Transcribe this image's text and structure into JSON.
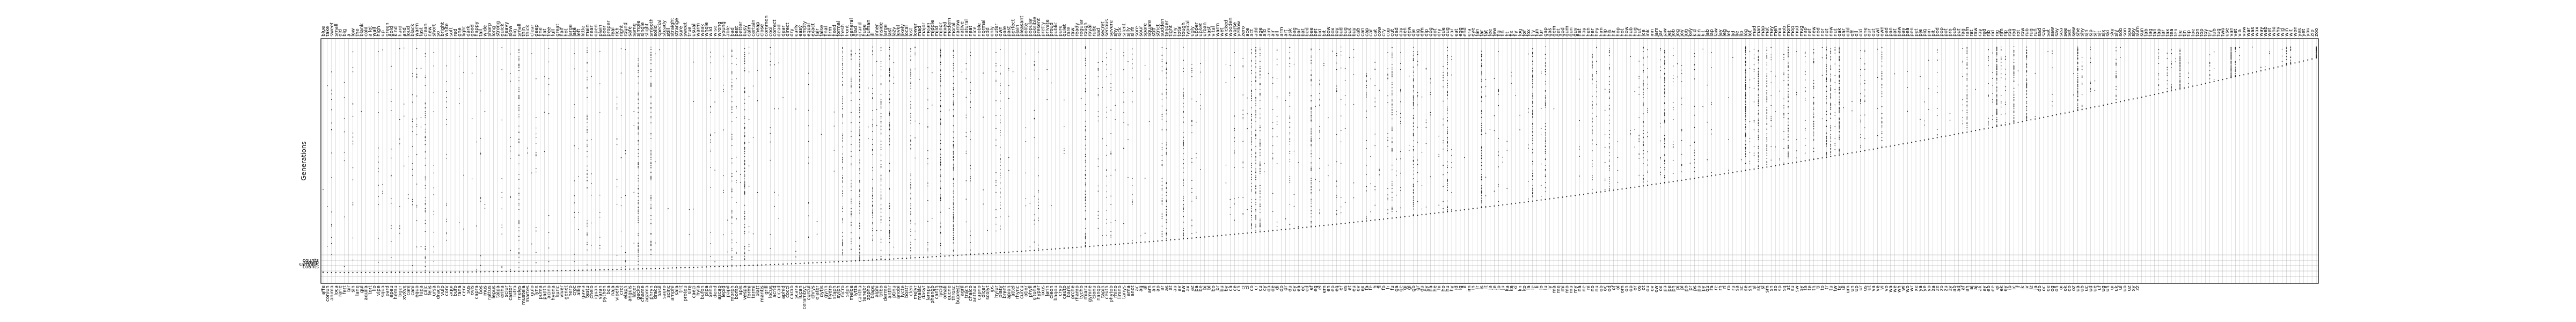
{
  "chart_data": {
    "type": "scatter",
    "title": "",
    "xlabel": "",
    "ylabel": "Generations",
    "grid": true,
    "x_top_labels": [
      "blue",
      "take",
      "sweet",
      "small",
      "old",
      "big",
      "a",
      "low",
      "the",
      "blank",
      "cold",
      "a lot",
      "wall",
      "high",
      "up",
      "green",
      "gold",
      "kind",
      "hard",
      "and",
      "loud",
      "black",
      "warm",
      "fast",
      "clean",
      "new",
      "short",
      "so",
      "bright",
      "white",
      "soft",
      "red",
      "one",
      "light",
      "dark",
      "good",
      "happy",
      "tall",
      "wide",
      "sharp",
      "long",
      "strong",
      "quick",
      "heavy",
      "slow",
      "big",
      "small",
      "thin",
      "thick",
      "clear",
      "deep",
      "fine",
      "flat",
      "free",
      "full",
      "great",
      "half",
      "hot",
      "large",
      "late",
      "left",
      "little",
      "main",
      "near",
      "open",
      "plain",
      "poor",
      "proper",
      "real",
      "rich",
      "right",
      "round",
      "safe",
      "same",
      "simple",
      "single",
      "slight",
      "smooth",
      "solid",
      "special",
      "steady",
      "still",
      "straight",
      "strange",
      "sure",
      "sweet",
      "true",
      "usual",
      "warm",
      "weak",
      "whole",
      "wild",
      "wise",
      "wrong",
      "young",
      "able",
      "bad",
      "best",
      "better",
      "busy",
      "calm",
      "certain",
      "cheap",
      "close",
      "common",
      "cool",
      "correct",
      "dead",
      "dear",
      "direct",
      "dry",
      "early",
      "easy",
      "empty",
      "equal",
      "exact",
      "fair",
      "false",
      "final",
      "firm",
      "fixed",
      "formal",
      "fresh",
      "front",
      "general",
      "glad",
      "grand",
      "huge",
      "human",
      "ill",
      "inner",
      "inside",
      "large",
      "last",
      "lazy",
      "level",
      "likely",
      "local",
      "lost",
      "lower",
      "mad",
      "major",
      "mean",
      "middle",
      "mild",
      "minor",
      "mixed",
      "modern",
      "moral",
      "narrow",
      "native",
      "natural",
      "neat",
      "nice",
      "noble",
      "normal",
      "odd",
      "only",
      "outer",
      "own",
      "pale",
      "past",
      "perfect",
      "plain",
      "pleasant",
      "polite",
      "popular",
      "possible",
      "present",
      "pretty",
      "private",
      "proud",
      "public",
      "pure",
      "quiet",
      "rare",
      "raw",
      "ready",
      "regular",
      "rough",
      "royal",
      "rude",
      "sad",
      "secret",
      "serious",
      "severe",
      "shy",
      "sick",
      "silent",
      "silly",
      "slim",
      "sore",
      "sour",
      "spare",
      "square",
      "stiff",
      "strict",
      "sudden",
      "tender",
      "tight",
      "tiny",
      "total",
      "tough",
      "typical",
      "ugly",
      "upper",
      "upset",
      "urban",
      "vast",
      "vital",
      "warm",
      "wet",
      "wicked",
      "wooden",
      "worse",
      "yellow",
      "zero",
      "ace",
      "act",
      "add",
      "age",
      "aid",
      "aim",
      "air",
      "all",
      "arm",
      "art",
      "ask",
      "bag",
      "bar",
      "bat",
      "bed",
      "bee",
      "bet",
      "bid",
      "bit",
      "bow",
      "box",
      "boy",
      "bud",
      "bug",
      "bus",
      "buy",
      "cab",
      "can",
      "cap",
      "car",
      "cat",
      "cow",
      "cry",
      "cup",
      "cut",
      "dad",
      "day",
      "den",
      "dew",
      "die",
      "dig",
      "dim",
      "dip",
      "dog",
      "dot",
      "dry",
      "due",
      "dug",
      "ear",
      "eat",
      "egg",
      "end",
      "era",
      "eye",
      "fan",
      "far",
      "fat",
      "fee",
      "few",
      "fig",
      "fin",
      "fit",
      "fix",
      "fly",
      "fog",
      "for",
      "fox",
      "fry",
      "fun",
      "fur",
      "gap",
      "gas",
      "gem",
      "get",
      "god",
      "gum",
      "gun",
      "guy",
      "hat",
      "hay",
      "hen",
      "her",
      "hey",
      "him",
      "hip",
      "his",
      "hit",
      "hop",
      "hot",
      "how",
      "hub",
      "hug",
      "hut",
      "ice",
      "ink",
      "inn",
      "jam",
      "jar",
      "jaw",
      "jet",
      "job",
      "jog",
      "joy",
      "jug",
      "key",
      "kid",
      "kin",
      "kit",
      "lab",
      "lap",
      "law",
      "lay",
      "leg",
      "let",
      "lid",
      "lie",
      "lip",
      "log",
      "lot",
      "mad",
      "man",
      "map",
      "mat",
      "may",
      "men",
      "mix",
      "mob",
      "mom",
      "mop",
      "mud",
      "mug",
      "nap",
      "net",
      "new",
      "nod",
      "nor",
      "not",
      "now",
      "nut",
      "oak",
      "oar",
      "odd",
      "off",
      "oil",
      "old",
      "one",
      "our",
      "out",
      "owl",
      "own",
      "pad",
      "pan",
      "pat",
      "paw",
      "pay",
      "pea",
      "pen",
      "pet",
      "pie",
      "pig",
      "pin",
      "pit",
      "pod",
      "pop",
      "pot",
      "pro",
      "pub",
      "put",
      "rag",
      "ram",
      "rat",
      "raw",
      "ray",
      "red",
      "rib",
      "rid",
      "rig",
      "rim",
      "rip",
      "rob",
      "rod",
      "rot",
      "row",
      "rub",
      "rug",
      "run",
      "sad",
      "sap",
      "sat",
      "saw",
      "say",
      "sea",
      "see",
      "set",
      "sew",
      "she",
      "shy",
      "sin",
      "sip",
      "sir",
      "sit",
      "six",
      "ski",
      "sky",
      "sly",
      "sob",
      "son",
      "spa",
      "spy",
      "sum",
      "sun",
      "tab",
      "tag",
      "tan",
      "tap",
      "tar",
      "tax",
      "tea",
      "ten",
      "tie",
      "tin",
      "tip",
      "toe",
      "ton",
      "top",
      "toy",
      "try",
      "tub",
      "tug",
      "two",
      "use",
      "van",
      "vet",
      "via",
      "vow",
      "war",
      "was",
      "wax",
      "way",
      "web",
      "wet",
      "who",
      "why",
      "wig",
      "win",
      "wit",
      "won",
      "yes",
      "yet",
      "you",
      "zip",
      "zoo"
    ],
    "x_bottom_labels": [
      "affe",
      "coniun",
      "anima",
      "loca",
      "rarie",
      "fert",
      "bir",
      "sin",
      "lane",
      "gul",
      "aquila",
      "tort",
      "lio",
      "vipe",
      "squa",
      "pard",
      "epeu",
      "hemu",
      "tiger",
      "xvxvx",
      "cani",
      "cani",
      "equo",
      "lupa",
      "calc",
      "felis",
      "ursa",
      "draco",
      "vulp",
      "corv",
      "aqui",
      "bufo",
      "rana",
      "cerv",
      "sus",
      "ovis",
      "capra",
      "bos",
      "mus",
      "rattus",
      "lepus",
      "talpa",
      "erina",
      "sciur",
      "castor",
      "lutra",
      "meles",
      "mustela",
      "martes",
      "gulo",
      "lynx",
      "puma",
      "panth",
      "acino",
      "hyena",
      "suric",
      "viver",
      "genet",
      "herp",
      "croc",
      "allig",
      "gavia",
      "testu",
      "chelo",
      "iguan",
      "varan",
      "python",
      "boa",
      "naja",
      "vipera",
      "crot",
      "elaph",
      "anguis",
      "lacer",
      "gecko",
      "chame",
      "agama",
      "phryn",
      "draco",
      "basil",
      "sauro",
      "scinc",
      "amphi",
      "sala",
      "trit",
      "proteu",
      "sire",
      "caeci",
      "hyla",
      "bufon",
      "pipa",
      "xeno",
      "dend",
      "ascap",
      "lepid",
      "papil",
      "morph",
      "bomb",
      "apis",
      "vespa",
      "formi",
      "termi",
      "blatt",
      "mantis",
      "grill",
      "locus",
      "acrid",
      "cicad",
      "aphid",
      "cocci",
      "carab",
      "scara",
      "lucan",
      "cerambyc",
      "curcul",
      "chrys",
      "elater",
      "dytis",
      "gyrin",
      "hydro",
      "staph",
      "sylph",
      "nicro",
      "silph",
      "meloe",
      "lytta",
      "cantha",
      "tenebr",
      "zopho",
      "blaps",
      "alphi",
      "tribo",
      "derme",
      "anthr",
      "ptinu",
      "anobi",
      "lycte",
      "bostr",
      "cleri",
      "melyr",
      "malac",
      "dasyt",
      "lampy",
      "phengo",
      "canth",
      "lycid",
      "omali",
      "eucne",
      "throsc",
      "buprest",
      "agril",
      "trach",
      "chalco",
      "anthax",
      "capno",
      "dicer",
      "scolyt",
      "ips",
      "hylur",
      "platy",
      "brent",
      "apion",
      "attel",
      "rhync",
      "curcu",
      "otior",
      "phyll",
      "sitona",
      "hyper",
      "lixus",
      "larin",
      "cleon",
      "bagou",
      "cryp",
      "ceuto",
      "baris",
      "orche",
      "rhamp",
      "tycho",
      "miaru",
      "gymne",
      "cionu",
      "nanop",
      "tapin",
      "ceuth",
      "phytob",
      "rhino",
      "limno",
      "tanys",
      "ama",
      "anot",
      "ac",
      "ag",
      "al",
      "am",
      "an",
      "ap",
      "ar",
      "as",
      "at",
      "au",
      "av",
      "aw",
      "ax",
      "az",
      "ba",
      "be",
      "bi",
      "bl",
      "bo",
      "br",
      "bu",
      "by",
      "ca",
      "ce",
      "ch",
      "ci",
      "cl",
      "co",
      "cr",
      "cu",
      "cy",
      "da",
      "de",
      "di",
      "do",
      "dr",
      "du",
      "dy",
      "ea",
      "ec",
      "ed",
      "ef",
      "eg",
      "el",
      "em",
      "en",
      "ep",
      "eq",
      "er",
      "es",
      "et",
      "eu",
      "ev",
      "ex",
      "fa",
      "fe",
      "fi",
      "fl",
      "fo",
      "fr",
      "fu",
      "ga",
      "ge",
      "gi",
      "gl",
      "go",
      "gr",
      "gu",
      "gy",
      "ha",
      "he",
      "hi",
      "ho",
      "hu",
      "hy",
      "id",
      "ig",
      "il",
      "im",
      "in",
      "ir",
      "is",
      "it",
      "ja",
      "je",
      "jo",
      "ju",
      "ka",
      "ke",
      "ki",
      "kn",
      "ko",
      "la",
      "le",
      "li",
      "lo",
      "lu",
      "ly",
      "ma",
      "me",
      "mi",
      "mo",
      "mu",
      "my",
      "na",
      "ne",
      "ni",
      "no",
      "nu",
      "ob",
      "oc",
      "od",
      "of",
      "ol",
      "om",
      "on",
      "op",
      "or",
      "os",
      "ot",
      "ou",
      "ov",
      "ow",
      "ox",
      "pa",
      "pe",
      "ph",
      "pi",
      "pl",
      "po",
      "pr",
      "ps",
      "pu",
      "py",
      "qu",
      "ra",
      "re",
      "rh",
      "ri",
      "ro",
      "ru",
      "sa",
      "sc",
      "se",
      "sh",
      "si",
      "sk",
      "sl",
      "sm",
      "sn",
      "so",
      "sp",
      "sq",
      "st",
      "su",
      "sw",
      "sy",
      "ta",
      "te",
      "th",
      "ti",
      "to",
      "tr",
      "tu",
      "tw",
      "ty",
      "ul",
      "um",
      "un",
      "up",
      "ur",
      "us",
      "ut",
      "va",
      "ve",
      "vi",
      "vo",
      "wa",
      "we",
      "wh",
      "wi",
      "wo",
      "wr",
      "xe",
      "ya",
      "ye",
      "yo",
      "za",
      "ze",
      "zo",
      "zu",
      "zy",
      "ab",
      "ad",
      "af",
      "ah",
      "ai",
      "aj",
      "ak",
      "ay",
      "eb",
      "ee",
      "ei",
      "ek",
      "ey",
      "ib",
      "ic",
      "if",
      "ik",
      "iv",
      "iz",
      "ja",
      "ob",
      "oc",
      "oe",
      "og",
      "oh",
      "oi",
      "ok",
      "oo",
      "oz",
      "ua",
      "ub",
      "uc",
      "ud",
      "ue",
      "uf",
      "ug",
      "uh",
      "ui",
      "uk",
      "ul",
      "uo",
      "uz",
      "xy",
      "zz"
    ],
    "y_labels": [
      "counts",
      "sweep",
      "samples",
      "counts"
    ],
    "n_points": 480,
    "ylim": [
      0,
      1
    ]
  },
  "colors": {
    "background": "#ffffff",
    "frame": "#000000",
    "grid": "#bdbdbd",
    "marker": "#222222"
  }
}
